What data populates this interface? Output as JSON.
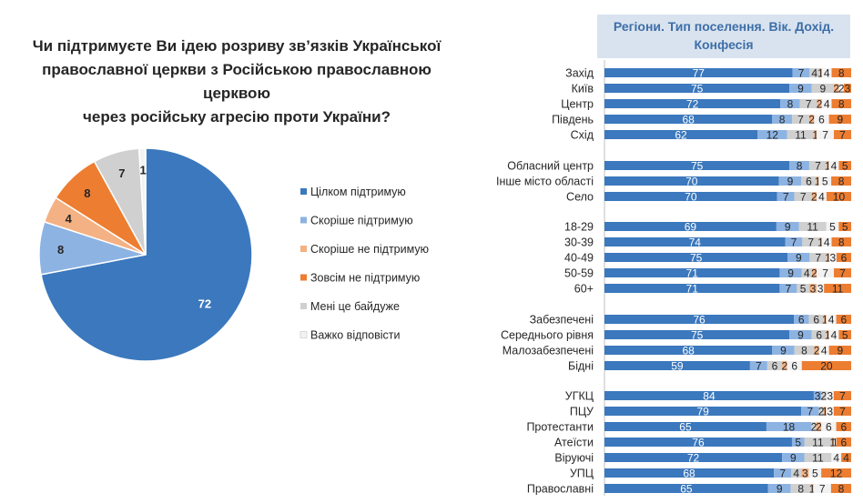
{
  "chart_data": [
    {
      "type": "pie",
      "title": "Чи підтримуєте Ви ідею розриву зв’язків Української православної церкви з Російською православною церквою через російську агресію проти України?",
      "title_lines": [
        "Чи підтримуєте Ви ідею розриву зв’язків Української",
        "православної церкви з Російською православною церквою",
        "через російську агресію проти України?"
      ],
      "slices": [
        {
          "label": "Цілком підтримую",
          "value": 72,
          "color": "#3b78bd"
        },
        {
          "label": "Скоріше підтримую",
          "value": 8,
          "color": "#8db3e2"
        },
        {
          "label": "Скоріше не підтримую",
          "value": 4,
          "color": "#f4b183"
        },
        {
          "label": "Зовсім не підтримую",
          "value": 8,
          "color": "#ed7d31"
        },
        {
          "label": "Мені це байдуже",
          "value": 7,
          "color": "#d0d0d0"
        },
        {
          "label": "Важко відповісти",
          "value": 1,
          "color": "#f2f2f2"
        }
      ],
      "legend_position": "right"
    },
    {
      "type": "bar",
      "orientation": "horizontal",
      "stacked": true,
      "title": "Регіони. Тип поселення. Вік. Дохід. Конфесія",
      "title_lines": [
        "Регіони. Тип поселення. Вік. Дохід.",
        "Конфесія"
      ],
      "series_colors": [
        "#3b78bd",
        "#8db3e2",
        "#d0d0d0",
        "#f4b183",
        "#f2f2f2",
        "#ed7d31"
      ],
      "groups": [
        {
          "rows": [
            {
              "label": "Захід",
              "values": [
                77,
                7,
                4,
                1,
                4,
                8
              ],
              "text": [
                "77",
                "7",
                "4",
                "1",
                "4",
                "8"
              ]
            },
            {
              "label": "Київ",
              "values": [
                75,
                9,
                9,
                2,
                2,
                3
              ],
              "text": [
                "75",
                "9",
                "9",
                "2",
                "2",
                "3"
              ]
            },
            {
              "label": "Центр",
              "values": [
                72,
                8,
                7,
                2,
                4,
                8
              ],
              "text": [
                "72",
                "8",
                "7",
                "2",
                "4",
                "8"
              ]
            },
            {
              "label": "Південь",
              "values": [
                68,
                8,
                7,
                2,
                6,
                9
              ],
              "text": [
                "68",
                "8",
                "7",
                "2",
                "6",
                "9"
              ]
            },
            {
              "label": "Схід",
              "values": [
                62,
                12,
                11,
                1,
                7,
                7
              ],
              "text": [
                "62",
                "12",
                "11",
                "1",
                "7",
                "7"
              ]
            }
          ]
        },
        {
          "rows": [
            {
              "label": "Обласний центр",
              "values": [
                75,
                8,
                7,
                1,
                4,
                5
              ],
              "text": [
                "75",
                "8",
                "7",
                "1",
                "4",
                "5"
              ]
            },
            {
              "label": "Інше місто області",
              "values": [
                70,
                9,
                6,
                1,
                5,
                8
              ],
              "text": [
                "70",
                "9",
                "6",
                "1",
                "5",
                "8"
              ]
            },
            {
              "label": "Село",
              "values": [
                70,
                7,
                7,
                2,
                4,
                10
              ],
              "text": [
                "70",
                "7",
                "7",
                "2",
                "4",
                "10"
              ]
            }
          ]
        },
        {
          "rows": [
            {
              "label": "18-29",
              "values": [
                69,
                9,
                11,
                0,
                5,
                5
              ],
              "text": [
                "69",
                "9",
                "11",
                "",
                "5",
                "5"
              ]
            },
            {
              "label": "30-39",
              "values": [
                74,
                7,
                7,
                1,
                4,
                8
              ],
              "text": [
                "74",
                "7",
                "7",
                "1",
                "4",
                "8"
              ]
            },
            {
              "label": "40-49",
              "values": [
                75,
                9,
                7,
                1,
                3,
                6
              ],
              "text": [
                "75",
                "9",
                "7",
                "1",
                "3",
                "6"
              ]
            },
            {
              "label": "50-59",
              "values": [
                71,
                9,
                4,
                2,
                7,
                7
              ],
              "text": [
                "71",
                "9",
                "4",
                "2",
                "7",
                "7"
              ]
            },
            {
              "label": "60+",
              "values": [
                71,
                7,
                5,
                3,
                3,
                11
              ],
              "text": [
                "71",
                "7",
                "5",
                "3",
                "3",
                "11"
              ]
            }
          ]
        },
        {
          "rows": [
            {
              "label": "Забезпечені",
              "values": [
                76,
                6,
                6,
                1,
                4,
                6
              ],
              "text": [
                "76",
                "6",
                "6",
                "1",
                "4",
                "6"
              ]
            },
            {
              "label": "Середнього рівня",
              "values": [
                75,
                9,
                6,
                1,
                4,
                5
              ],
              "text": [
                "75",
                "9",
                "6",
                "1",
                "4",
                "5"
              ]
            },
            {
              "label": "Малозабезпечені",
              "values": [
                68,
                9,
                8,
                2,
                4,
                9
              ],
              "text": [
                "68",
                "9",
                "8",
                "2",
                "4",
                "9"
              ]
            },
            {
              "label": "Бідні",
              "values": [
                59,
                7,
                6,
                2,
                6,
                20
              ],
              "text": [
                "59",
                "7",
                "6",
                "2",
                "6",
                "20"
              ]
            }
          ]
        },
        {
          "rows": [
            {
              "label": "УГКЦ",
              "values": [
                84,
                3,
                2,
                0,
                3,
                7
              ],
              "text": [
                "84",
                "3",
                "2",
                "",
                "3",
                "7"
              ]
            },
            {
              "label": "ПЦУ",
              "values": [
                79,
                7,
                2,
                1,
                3,
                7
              ],
              "text": [
                "79",
                "7",
                "2",
                "1",
                "3",
                "7"
              ]
            },
            {
              "label": "Протестанти",
              "values": [
                65,
                18,
                2,
                2,
                6,
                6
              ],
              "text": [
                "65",
                "18",
                "2",
                "2",
                "6",
                "6"
              ]
            },
            {
              "label": "Атеїсти",
              "values": [
                76,
                5,
                11,
                1,
                1,
                6
              ],
              "text": [
                "76",
                "5",
                "11",
                "1",
                "1",
                "6"
              ]
            },
            {
              "label": "Віруючі",
              "values": [
                72,
                9,
                11,
                0,
                4,
                4
              ],
              "text": [
                "72",
                "9",
                "11",
                "",
                "4",
                "4"
              ]
            },
            {
              "label": "УПЦ",
              "values": [
                68,
                7,
                4,
                3,
                5,
                12
              ],
              "text": [
                "68",
                "7",
                "4",
                "3",
                "5",
                "12"
              ]
            },
            {
              "label": "Православні",
              "values": [
                65,
                9,
                8,
                1,
                7,
                8
              ],
              "text": [
                "65",
                "9",
                "8",
                "1",
                "7",
                "8"
              ]
            }
          ]
        }
      ]
    }
  ]
}
